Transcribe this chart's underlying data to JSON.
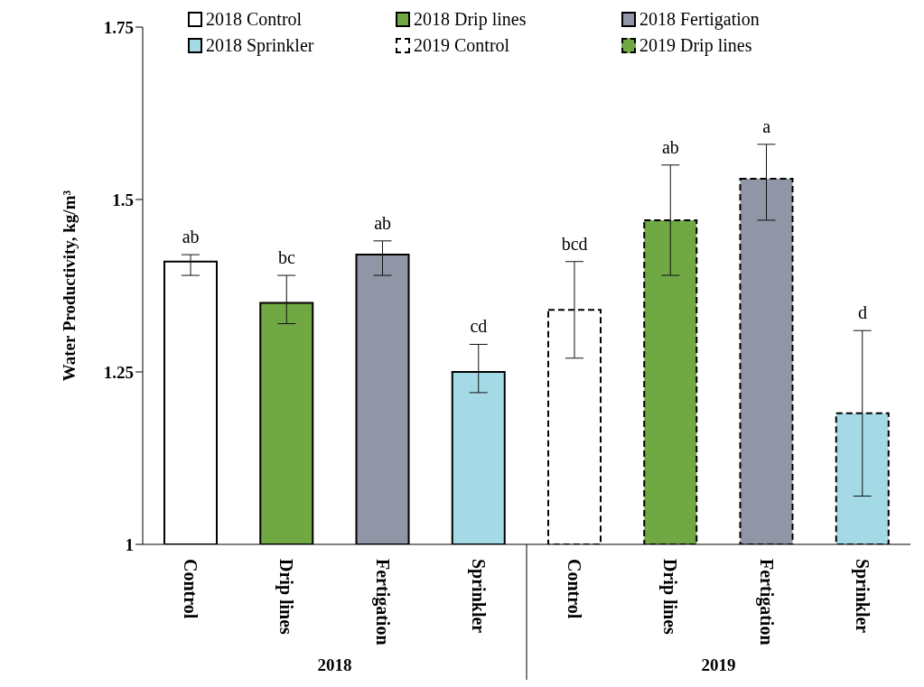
{
  "chart_data": {
    "type": "bar",
    "ylabel": "Water Productivity, kg/m³",
    "categories": [
      "Control",
      "Drip lines",
      "Fertigation",
      "Sprinkler",
      "Control",
      "Drip lines",
      "Fertigation",
      "Sprinkler"
    ],
    "series": [
      {
        "name": "2018 Control",
        "color": "#ffffff",
        "values": [
          1.41,
          null,
          null,
          null,
          null,
          null,
          null,
          null
        ],
        "errors": [
          [
            1.39,
            1.42
          ],
          null,
          null,
          null,
          null,
          null,
          null,
          null
        ]
      },
      {
        "name": "2018 Drip lines",
        "color": "#70a844",
        "values": [
          null,
          1.35,
          null,
          null,
          null,
          null,
          null,
          null
        ],
        "errors": [
          null,
          [
            1.32,
            1.39
          ],
          null,
          null,
          null,
          null,
          null,
          null
        ]
      },
      {
        "name": "2018 Fertigation",
        "color": "#9096a6",
        "values": [
          null,
          null,
          1.42,
          null,
          null,
          null,
          null,
          null
        ],
        "errors": [
          null,
          null,
          [
            1.39,
            1.44
          ],
          null,
          null,
          null,
          null,
          null
        ]
      },
      {
        "name": "2018 Sprinkler",
        "color": "#a3dae6",
        "values": [
          null,
          null,
          null,
          1.25,
          null,
          null,
          null,
          null
        ],
        "errors": [
          null,
          null,
          null,
          [
            1.22,
            1.29
          ],
          null,
          null,
          null,
          null
        ]
      },
      {
        "name": "2019 Control",
        "color": "#ffffff",
        "line_style": "dashed",
        "values": [
          null,
          null,
          null,
          null,
          1.34,
          null,
          null,
          null
        ],
        "errors": [
          null,
          null,
          null,
          null,
          [
            1.27,
            1.41
          ],
          null,
          null,
          null
        ]
      },
      {
        "name": "2019 Drip lines",
        "color": "#70a844",
        "line_style": "dashed",
        "values": [
          null,
          null,
          null,
          null,
          null,
          1.47,
          null,
          null
        ],
        "errors": [
          null,
          null,
          null,
          null,
          null,
          [
            1.39,
            1.55
          ],
          null,
          null
        ]
      },
      {
        "color": "#9096a6",
        "line_style": "dashed",
        "values": [
          null,
          null,
          null,
          null,
          null,
          null,
          1.53,
          null
        ],
        "errors": [
          null,
          null,
          null,
          null,
          null,
          null,
          [
            1.47,
            1.58
          ],
          null
        ]
      },
      {
        "color": "#a3dae6",
        "line_style": "dashed",
        "values": [
          null,
          null,
          null,
          null,
          null,
          null,
          null,
          1.19
        ],
        "errors": [
          null,
          null,
          null,
          null,
          null,
          null,
          null,
          [
            1.07,
            1.31
          ]
        ]
      }
    ],
    "ylim": [
      1,
      1.75
    ],
    "yticks": [
      1,
      1.25,
      1.5,
      1.75
    ],
    "grid": false,
    "legend": "top",
    "annotations": [
      "ab",
      "bc",
      "ab",
      "cd",
      "bcd",
      "ab",
      "a",
      "d",
      "2018",
      "2019"
    ]
  }
}
